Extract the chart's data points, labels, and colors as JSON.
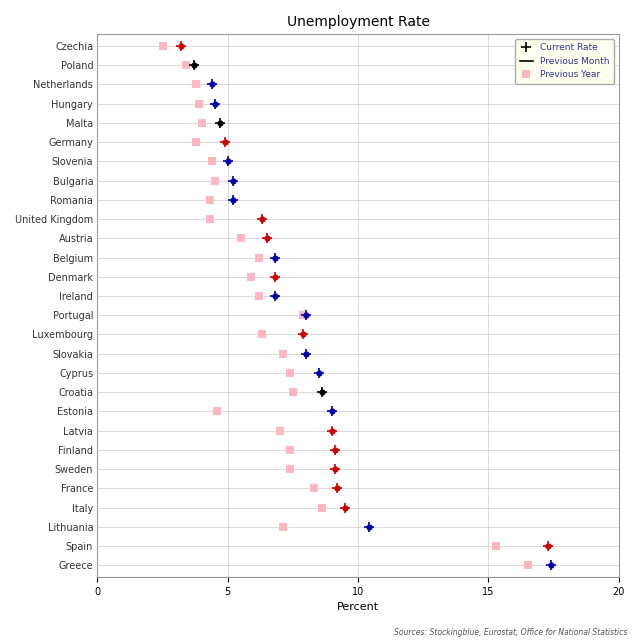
{
  "title": "Unemployment Rate",
  "xlabel": "Percent",
  "source": "Sources: Stockingblue, Eurostat, Office for National Statistics",
  "countries": [
    "Czechia",
    "Poland",
    "Netherlands",
    "Hungary",
    "Malta",
    "Germany",
    "Slovenia",
    "Bulgaria",
    "Romania",
    "United Kingdom",
    "Austria",
    "Belgium",
    "Denmark",
    "Ireland",
    "Portugal",
    "Luxembourg",
    "Slovakia",
    "Cyprus",
    "Croatia",
    "Estonia",
    "Latvia",
    "Finland",
    "Sweden",
    "France",
    "Italy",
    "Lithuania",
    "Spain",
    "Greece"
  ],
  "current_rate": [
    3.2,
    3.7,
    4.4,
    4.5,
    4.7,
    4.9,
    5.0,
    5.2,
    5.2,
    6.3,
    6.5,
    6.8,
    6.8,
    6.8,
    8.0,
    7.9,
    8.0,
    8.5,
    8.6,
    9.0,
    9.0,
    9.1,
    9.1,
    9.2,
    9.5,
    10.4,
    17.3,
    17.4
  ],
  "previous_month": [
    null,
    null,
    4.4,
    4.5,
    null,
    null,
    5.0,
    5.2,
    5.2,
    null,
    null,
    6.8,
    null,
    6.8,
    8.0,
    null,
    null,
    8.5,
    null,
    9.0,
    null,
    null,
    null,
    null,
    null,
    10.4,
    null,
    17.4
  ],
  "previous_year": [
    2.5,
    3.4,
    3.8,
    3.9,
    4.0,
    3.8,
    4.4,
    4.5,
    4.3,
    4.3,
    5.5,
    6.2,
    5.9,
    6.2,
    7.9,
    6.3,
    7.1,
    7.4,
    7.5,
    4.6,
    7.0,
    7.4,
    7.4,
    8.3,
    8.6,
    7.1,
    15.3,
    16.5
  ],
  "dot_colors": [
    "red",
    "black",
    "blue",
    "blue",
    "black",
    "red",
    "blue",
    "blue",
    "blue",
    "red",
    "red",
    "blue",
    "red",
    "blue",
    "blue",
    "red",
    "blue",
    "blue",
    "black",
    "blue",
    "red",
    "red",
    "red",
    "red",
    "red",
    "blue",
    "red",
    "blue"
  ],
  "arrow_colors_hex": {
    "red": "#cc0000",
    "blue": "#0000aa",
    "black": "#000000"
  },
  "prev_year_color": "#ffb6c1",
  "xlim": [
    0,
    20
  ],
  "xticks": [
    0,
    5,
    10,
    15,
    20
  ],
  "legend_label_color": "#333399",
  "legend_bg": "#fffff0",
  "grid_color": "#cccccc",
  "title_fontsize": 10,
  "label_fontsize": 7,
  "tick_fontsize": 7,
  "source_fontsize": 5.5
}
